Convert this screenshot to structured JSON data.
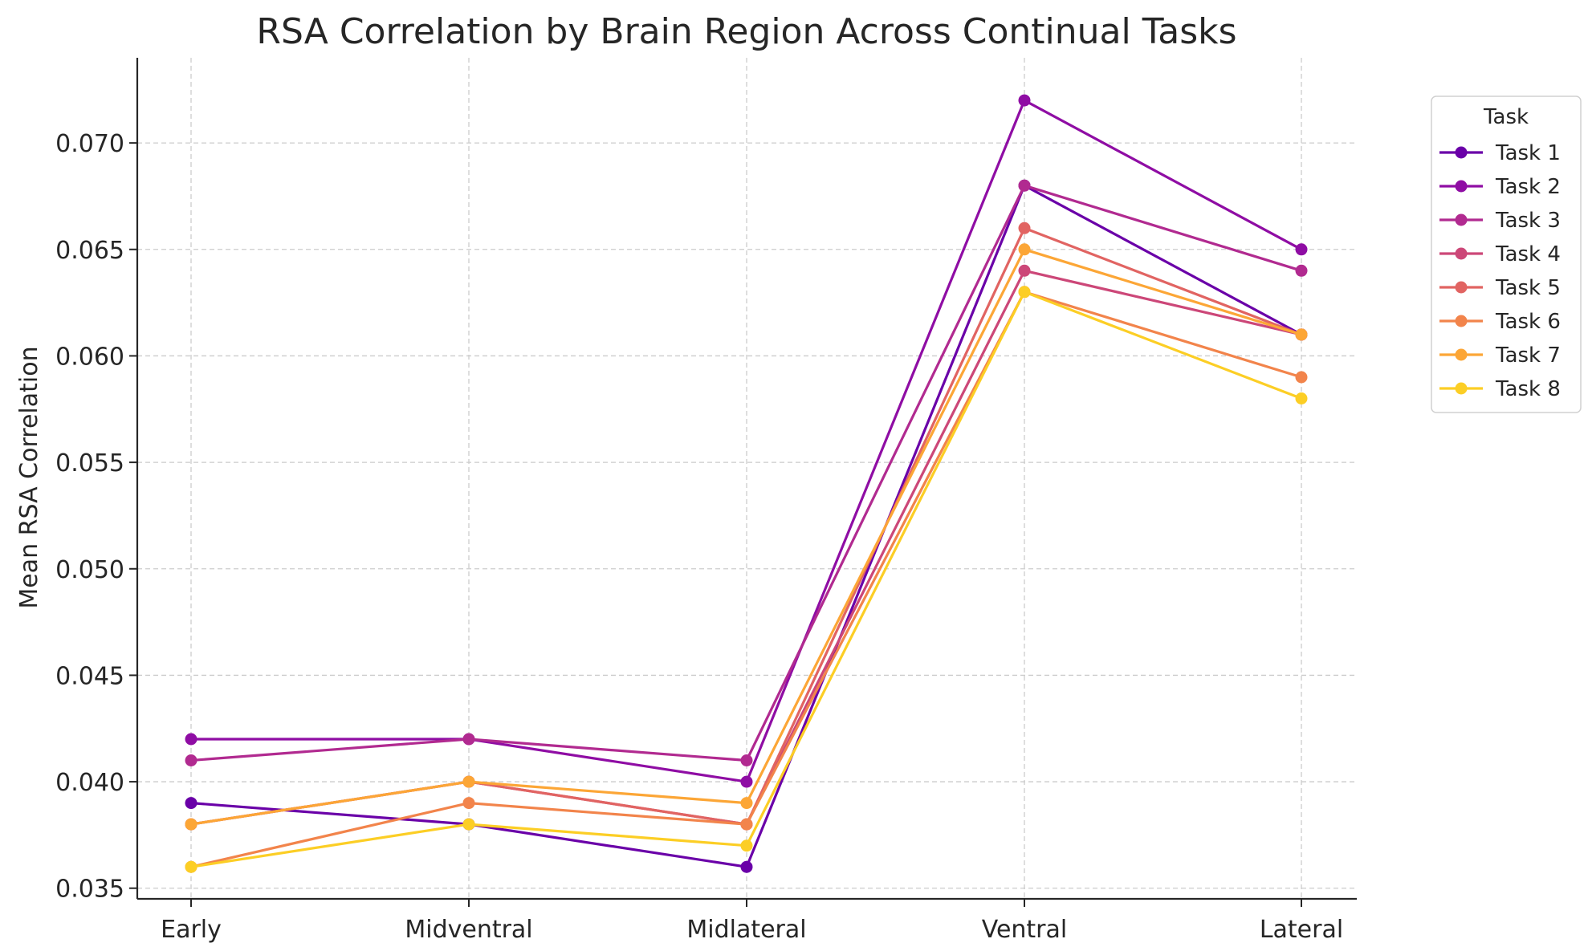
{
  "chart_data": {
    "type": "line",
    "title": "RSA Correlation by Brain Region Across Continual Tasks",
    "xlabel": "",
    "ylabel": "Mean RSA Correlation",
    "categories": [
      "Early",
      "Midventral",
      "Midlateral",
      "Ventral",
      "Lateral"
    ],
    "ylim": [
      0.0345,
      0.074
    ],
    "yticks": [
      0.035,
      0.04,
      0.045,
      0.05,
      0.055,
      0.06,
      0.065,
      0.07
    ],
    "ytick_labels": [
      "0.035",
      "0.040",
      "0.045",
      "0.050",
      "0.055",
      "0.060",
      "0.065",
      "0.070"
    ],
    "grid": true,
    "legend": {
      "title": "Task",
      "placement": "outside-top-right"
    },
    "series": [
      {
        "name": "Task 1",
        "color": "#6a00a8",
        "values": [
          0.039,
          0.038,
          0.036,
          0.068,
          0.061
        ]
      },
      {
        "name": "Task 2",
        "color": "#8f0da4",
        "values": [
          0.042,
          0.042,
          0.04,
          0.072,
          0.065
        ]
      },
      {
        "name": "Task 3",
        "color": "#b12a90",
        "values": [
          0.041,
          0.042,
          0.041,
          0.068,
          0.064
        ]
      },
      {
        "name": "Task 4",
        "color": "#cc4778",
        "values": [
          0.038,
          0.04,
          0.038,
          0.064,
          0.061
        ]
      },
      {
        "name": "Task 5",
        "color": "#e16462",
        "values": [
          0.038,
          0.04,
          0.038,
          0.066,
          0.061
        ]
      },
      {
        "name": "Task 6",
        "color": "#f2844b",
        "values": [
          0.036,
          0.039,
          0.038,
          0.063,
          0.059
        ]
      },
      {
        "name": "Task 7",
        "color": "#fca636",
        "values": [
          0.038,
          0.04,
          0.039,
          0.065,
          0.061
        ]
      },
      {
        "name": "Task 8",
        "color": "#fcce25",
        "values": [
          0.036,
          0.038,
          0.037,
          0.063,
          0.058
        ]
      }
    ]
  }
}
